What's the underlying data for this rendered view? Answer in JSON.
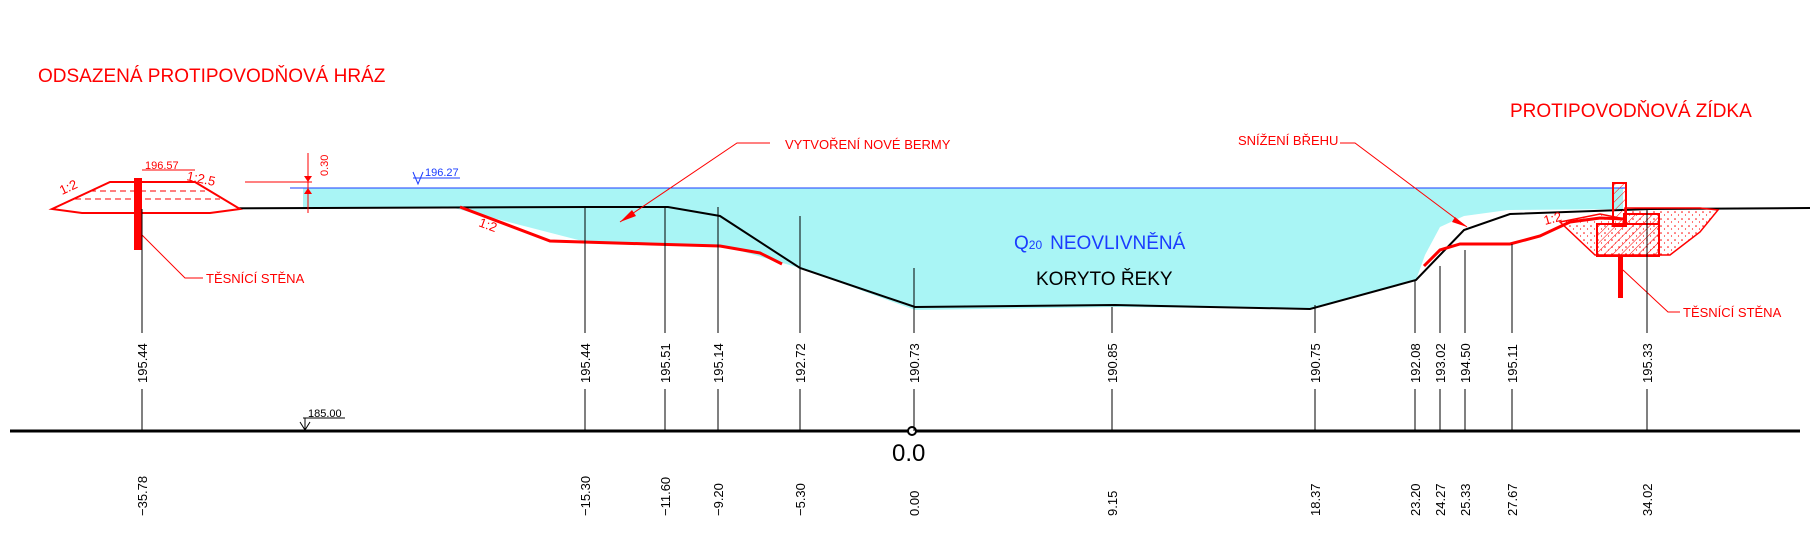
{
  "labels": {
    "levee_title": "ODSAZENÁ PROTIPOVODŇOVÁ HRÁZ",
    "wall_title": "PROTIPOVODŇOVÁ ZÍDKA",
    "new_berm": "VYTVOŘENÍ NOVÉ BERMY",
    "bank_lowering": "SNÍŽENÍ BŘEHU",
    "sealing_wall_left": "TĚSNÍCÍ STĚNA",
    "sealing_wall_right": "TĚSNÍCÍ STĚNA",
    "flow_q": "Q",
    "flow_sub": "20",
    "flow_text": "NEOVLIVNĚNÁ",
    "channel": "KORYTO ŘEKY",
    "origin": "0.0",
    "water_level": "196.27",
    "levee_crest": "196.57",
    "freeboard": "0.30",
    "datum": "185.00",
    "slope_levee_left": "1:2",
    "slope_levee_right": "1:2.5",
    "slope_berm": "1:2",
    "slope_right": "1:2"
  },
  "stations": [
    {
      "elevation": "195.44",
      "distance": "−35.78"
    },
    {
      "elevation": "195.44",
      "distance": "−15.30"
    },
    {
      "elevation": "195.51",
      "distance": "−11.60"
    },
    {
      "elevation": "195.14",
      "distance": "−9.20"
    },
    {
      "elevation": "192.72",
      "distance": "−5.30"
    },
    {
      "elevation": "190.73",
      "distance": "0.00"
    },
    {
      "elevation": "190.85",
      "distance": "9.15"
    },
    {
      "elevation": "190.75",
      "distance": "18.37"
    },
    {
      "elevation": "192.08",
      "distance": "23.20"
    },
    {
      "elevation": "193.02",
      "distance": "24.27"
    },
    {
      "elevation": "194.50",
      "distance": "25.33"
    },
    {
      "elevation": "195.11",
      "distance": "27.67"
    },
    {
      "elevation": "195.33",
      "distance": "34.02"
    }
  ],
  "colors": {
    "water": "#a9f5f5",
    "proposal": "#ff0000",
    "terrain": "#000000",
    "annotation": "#1a3cff"
  }
}
